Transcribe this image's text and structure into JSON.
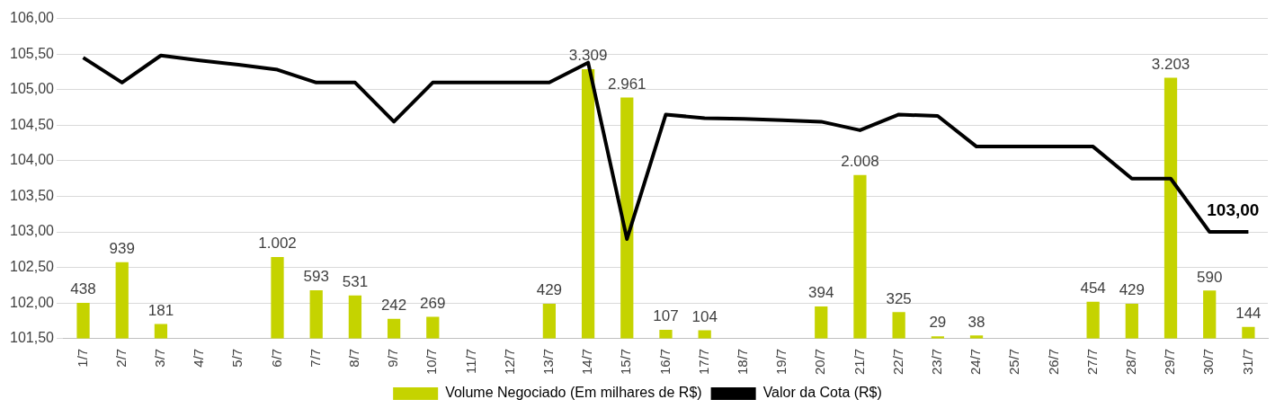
{
  "chart_data": {
    "type": "bar",
    "categories": [
      "1/7",
      "2/7",
      "3/7",
      "4/7",
      "5/7",
      "6/7",
      "7/7",
      "8/7",
      "9/7",
      "10/7",
      "11/7",
      "12/7",
      "13/7",
      "14/7",
      "15/7",
      "16/7",
      "17/7",
      "18/7",
      "19/7",
      "20/7",
      "21/7",
      "22/7",
      "23/7",
      "24/7",
      "25/7",
      "26/7",
      "27/7",
      "28/7",
      "29/7",
      "30/7",
      "31/7"
    ],
    "series": [
      {
        "name": "Volume Negociado (Em milhares de R$)",
        "axis": "y2",
        "color": "#c5d300",
        "values": [
          438,
          939,
          181,
          null,
          null,
          1002,
          593,
          531,
          242,
          269,
          null,
          null,
          429,
          3309,
          2961,
          107,
          104,
          null,
          null,
          394,
          2008,
          325,
          29,
          38,
          null,
          null,
          454,
          429,
          3203,
          590,
          144
        ],
        "value_labels": [
          "438",
          "939",
          "181",
          null,
          null,
          "1.002",
          "593",
          "531",
          "242",
          "269",
          null,
          null,
          "429",
          "3.309",
          "2.961",
          "107",
          "104",
          null,
          null,
          "394",
          "2.008",
          "325",
          "29",
          "38",
          null,
          null,
          "454",
          "429",
          "3.203",
          "590",
          "144"
        ]
      },
      {
        "name": "Valor da Cota (R$)",
        "type": "line",
        "color": "#000000",
        "values": [
          105.45,
          105.1,
          105.48,
          105.41,
          105.35,
          105.28,
          105.1,
          105.1,
          104.55,
          105.1,
          105.1,
          105.1,
          105.1,
          105.38,
          102.9,
          104.65,
          104.6,
          104.59,
          104.57,
          104.55,
          104.43,
          104.65,
          104.63,
          104.2,
          104.2,
          104.2,
          104.2,
          103.75,
          103.75,
          103.0,
          103.0
        ]
      }
    ],
    "ylim": [
      101.5,
      106
    ],
    "yticks": [
      {
        "value": 101.5,
        "label": "101,50"
      },
      {
        "value": 102,
        "label": "102,00"
      },
      {
        "value": 102.5,
        "label": "102,50"
      },
      {
        "value": 103,
        "label": "103,00"
      },
      {
        "value": 103.5,
        "label": "103,50"
      },
      {
        "value": 104,
        "label": "104,00"
      },
      {
        "value": 104.5,
        "label": "104,50"
      },
      {
        "value": 105,
        "label": "105,00"
      },
      {
        "value": 105.5,
        "label": "105,50"
      },
      {
        "value": 106,
        "label": "106,00"
      }
    ],
    "y2lim": [
      0,
      3930
    ],
    "tick_labels": [
      "x",
      "y"
    ],
    "annotations": [
      {
        "text": "103,00",
        "x": "31/7",
        "y": 103
      }
    ],
    "grid": "y",
    "legend": "bottom",
    "marker": "none",
    "line_style": "solid"
  }
}
